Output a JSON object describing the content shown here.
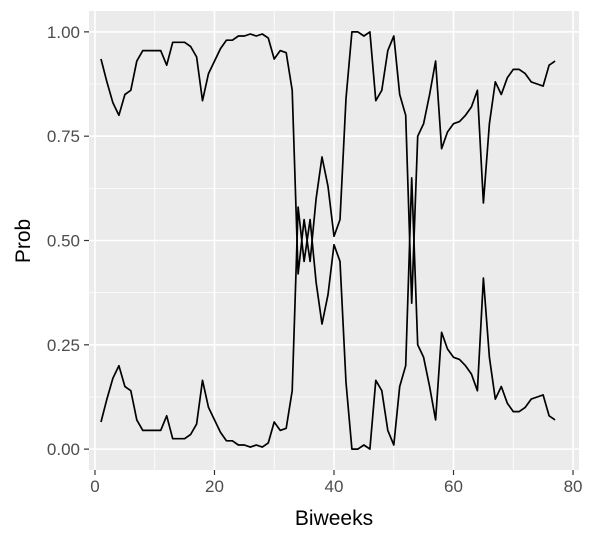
{
  "chart_data": {
    "type": "line",
    "xlabel": "Biweeks",
    "ylabel": "Prob",
    "xlim": [
      -1,
      81
    ],
    "ylim": [
      -0.05,
      1.05
    ],
    "x_ticks": [
      0,
      20,
      40,
      60,
      80
    ],
    "x_tick_labels": [
      "0",
      "20",
      "40",
      "60",
      "80"
    ],
    "y_ticks": [
      0,
      0.25,
      0.5,
      0.75,
      1
    ],
    "y_tick_labels": [
      "0.00",
      "0.25",
      "0.50",
      "0.75",
      "1.00"
    ],
    "x_minor": [
      10,
      30,
      50,
      70
    ],
    "y_minor": [
      0.125,
      0.375,
      0.625,
      0.875
    ],
    "grid": true,
    "background": "#ebebeb",
    "line_color": "#000000",
    "x": [
      1,
      2,
      3,
      4,
      5,
      6,
      7,
      8,
      9,
      10,
      11,
      12,
      13,
      14,
      15,
      16,
      17,
      18,
      19,
      20,
      21,
      22,
      23,
      24,
      25,
      26,
      27,
      28,
      29,
      30,
      31,
      32,
      33,
      34,
      35,
      36,
      37,
      38,
      39,
      40,
      41,
      42,
      43,
      44,
      45,
      46,
      47,
      48,
      49,
      50,
      51,
      52,
      53,
      54,
      55,
      56,
      57,
      58,
      59,
      60,
      61,
      62,
      63,
      64,
      65,
      66,
      67,
      68,
      69,
      70,
      71,
      72,
      73,
      74,
      75,
      76,
      77
    ],
    "series": [
      {
        "values": [
          0.935,
          0.88,
          0.83,
          0.8,
          0.85,
          0.86,
          0.93,
          0.955,
          0.955,
          0.955,
          0.955,
          0.92,
          0.975,
          0.975,
          0.975,
          0.965,
          0.94,
          0.835,
          0.9,
          0.93,
          0.96,
          0.98,
          0.98,
          0.99,
          0.99,
          0.995,
          0.99,
          0.995,
          0.985,
          0.935,
          0.955,
          0.95,
          0.86,
          0.42,
          0.55,
          0.45,
          0.6,
          0.7,
          0.63,
          0.51,
          0.55,
          0.84,
          1.0,
          1.0,
          0.99,
          1.0,
          0.835,
          0.86,
          0.955,
          0.99,
          0.85,
          0.8,
          0.35,
          0.75,
          0.78,
          0.85,
          0.93,
          0.72,
          0.76,
          0.78,
          0.785,
          0.8,
          0.82,
          0.86,
          0.59,
          0.78,
          0.88,
          0.85,
          0.89,
          0.91,
          0.91,
          0.9,
          0.88,
          0.875,
          0.87,
          0.92,
          0.93
        ]
      },
      {
        "values": [
          0.065,
          0.12,
          0.17,
          0.2,
          0.15,
          0.14,
          0.07,
          0.045,
          0.045,
          0.045,
          0.045,
          0.08,
          0.025,
          0.025,
          0.025,
          0.035,
          0.06,
          0.165,
          0.1,
          0.07,
          0.04,
          0.02,
          0.02,
          0.01,
          0.01,
          0.005,
          0.01,
          0.005,
          0.015,
          0.065,
          0.045,
          0.05,
          0.14,
          0.58,
          0.45,
          0.55,
          0.4,
          0.3,
          0.37,
          0.49,
          0.45,
          0.16,
          0.0,
          0.0,
          0.01,
          0.0,
          0.165,
          0.14,
          0.045,
          0.01,
          0.15,
          0.2,
          0.65,
          0.25,
          0.22,
          0.15,
          0.07,
          0.28,
          0.24,
          0.22,
          0.215,
          0.2,
          0.18,
          0.14,
          0.41,
          0.22,
          0.12,
          0.15,
          0.11,
          0.09,
          0.09,
          0.1,
          0.12,
          0.125,
          0.13,
          0.08,
          0.07
        ]
      }
    ]
  }
}
